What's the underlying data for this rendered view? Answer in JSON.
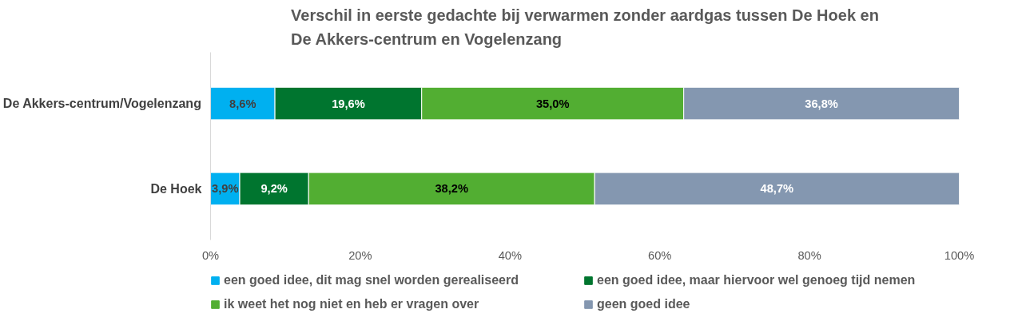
{
  "chart_data": {
    "type": "bar",
    "orientation": "horizontal",
    "stacked": true,
    "title": "Verschil in eerste gedachte bij verwarmen zonder aardgas tussen De Hoek en De Akkers-centrum en Vogelenzang",
    "categories": [
      "De Akkers-centrum/Vogelenzang",
      "De Hoek"
    ],
    "series": [
      {
        "name": "een goed idee, dit mag snel worden gerealiseerd",
        "color": "#00b0f0",
        "values": [
          8.6,
          3.9
        ],
        "value_labels": [
          "8,6%",
          "3,9%"
        ]
      },
      {
        "name": "een goed idee, maar hiervoor wel genoeg tijd nemen",
        "color": "#00752f",
        "values": [
          19.6,
          9.2
        ],
        "value_labels": [
          "19,6%",
          "9,2%"
        ]
      },
      {
        "name": "ik weet het nog niet en heb er vragen over",
        "color": "#52ae32",
        "values": [
          35.0,
          38.2
        ],
        "value_labels": [
          "35,0%",
          "38,2%"
        ]
      },
      {
        "name": "geen goed idee",
        "color": "#8497b0",
        "values": [
          36.8,
          48.7
        ],
        "value_labels": [
          "36,8%",
          "48,7%"
        ]
      }
    ],
    "xlim": [
      0,
      100
    ],
    "xticks": [
      {
        "value": 0,
        "label": "0%"
      },
      {
        "value": 20,
        "label": "20%"
      },
      {
        "value": 40,
        "label": "40%"
      },
      {
        "value": 60,
        "label": "60%"
      },
      {
        "value": 80,
        "label": "80%"
      },
      {
        "value": 100,
        "label": "100%"
      }
    ],
    "grid": false,
    "legend": "bottom"
  }
}
